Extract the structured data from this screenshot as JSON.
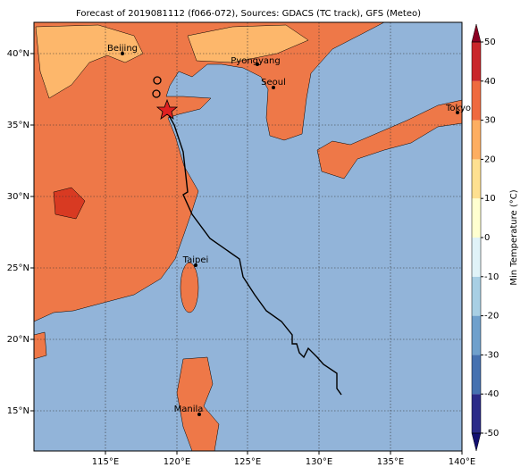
{
  "title": "Forecast of 2019081112 (f066-072), Sources: GDACS (TC track), GFS (Meteo)",
  "lon_labels": [
    "115°E",
    "120°E",
    "125°E",
    "130°E",
    "135°E",
    "140°E"
  ],
  "lat_labels": [
    "15°N",
    "20°N",
    "25°N",
    "30°N",
    "35°N",
    "40°N"
  ],
  "cities": [
    "Beijing",
    "Pyongyang",
    "Seoul",
    "Tokyo",
    "Taipei",
    "Manila"
  ],
  "colorbar": {
    "label": "Min Temperature (°C)",
    "ticks": [
      -50,
      -40,
      -30,
      -20,
      -10,
      0,
      10,
      20,
      30,
      40,
      50
    ],
    "colors": [
      "#2a2a88",
      "#4571b0",
      "#6fa0cc",
      "#a8cfe4",
      "#e0f3f8",
      "#ffffd0",
      "#fee090",
      "#fdae61",
      "#ef6a3f",
      "#c9262a"
    ]
  }
}
